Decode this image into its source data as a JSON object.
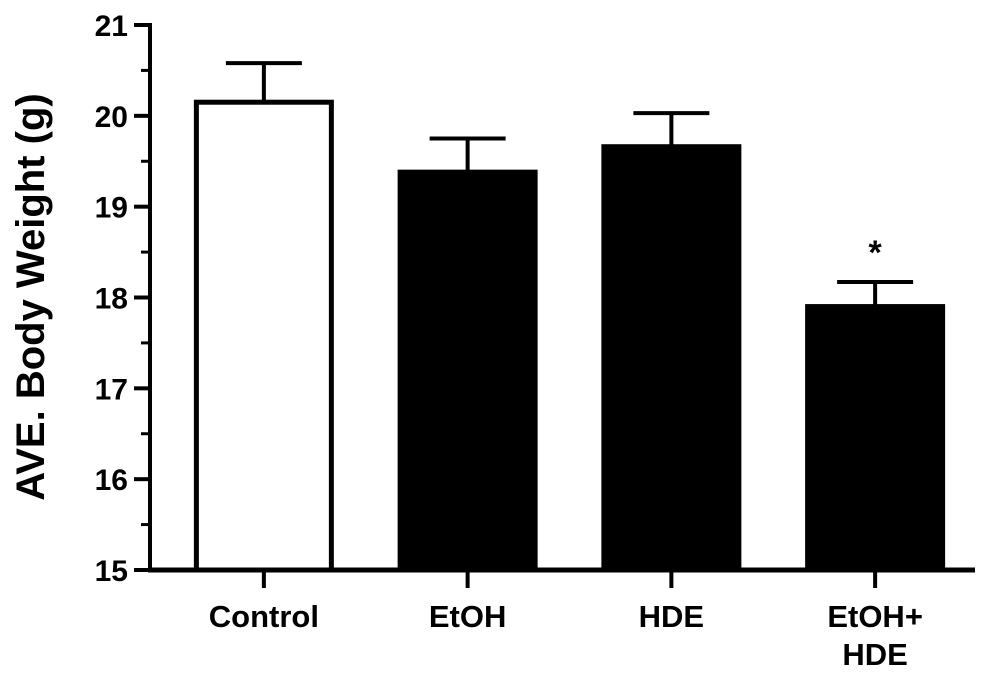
{
  "chart_data": {
    "type": "bar",
    "title": "",
    "xlabel": "",
    "ylabel": "AVE. Body Weight (g)",
    "ylim": [
      15,
      21
    ],
    "yticks": [
      "15",
      "16",
      "17",
      "18",
      "19",
      "20",
      "21"
    ],
    "minor_tick_step": 0.5,
    "grid": false,
    "legend": "none",
    "categories": [
      [
        "Control"
      ],
      [
        "EtOH"
      ],
      [
        "HDE"
      ],
      [
        "EtOH+",
        "HDE"
      ]
    ],
    "values": [
      20.15,
      19.38,
      19.66,
      17.9
    ],
    "errors": [
      0.43,
      0.37,
      0.37,
      0.27
    ],
    "bar_fill": [
      "#ffffff",
      "#000000",
      "#000000",
      "#000000"
    ],
    "bar_stroke": "#000000",
    "annotations": [
      "",
      "",
      "",
      "*"
    ]
  }
}
